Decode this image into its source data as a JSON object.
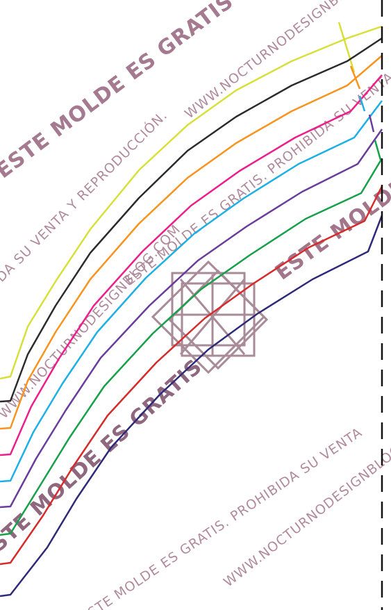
{
  "watermarks": {
    "molde_gratis": "ESTE MOLDE ES GRATIS",
    "molde_gratis_prohibida": "ESTE MOLDE ES GRATIS. PROHIBIDA SU VENTA Y REPRODUCCIÓN.",
    "prohibida_venta": "ESTE MOLDE ES GRATIS. PROHIBIDA SU VENTA",
    "reproduccion": "PROHIBIDA SU VENTA Y REPRODUCCIÓN.",
    "url_top": "WWW.NOCTURNODESIGNBLOG.COM",
    "url_mid": "WWW.NOCTURNODESIGNBLOG.COM",
    "url_bottom": "WWW.NOCTURNODESIGNBLOG.COM"
  },
  "size_lines": [
    {
      "color": "#d7e038"
    },
    {
      "color": "#2b2b2b"
    },
    {
      "color": "#f7931e"
    },
    {
      "color": "#ec1e8c"
    },
    {
      "color": "#1cb0e4"
    },
    {
      "color": "#6a3c9c"
    },
    {
      "color": "#17a04a"
    },
    {
      "color": "#d52b2b"
    },
    {
      "color": "#2e2a78"
    }
  ],
  "fold_line_color": "#111111",
  "logo_color": "#a98a97",
  "watermark_color": "#b18a9c"
}
